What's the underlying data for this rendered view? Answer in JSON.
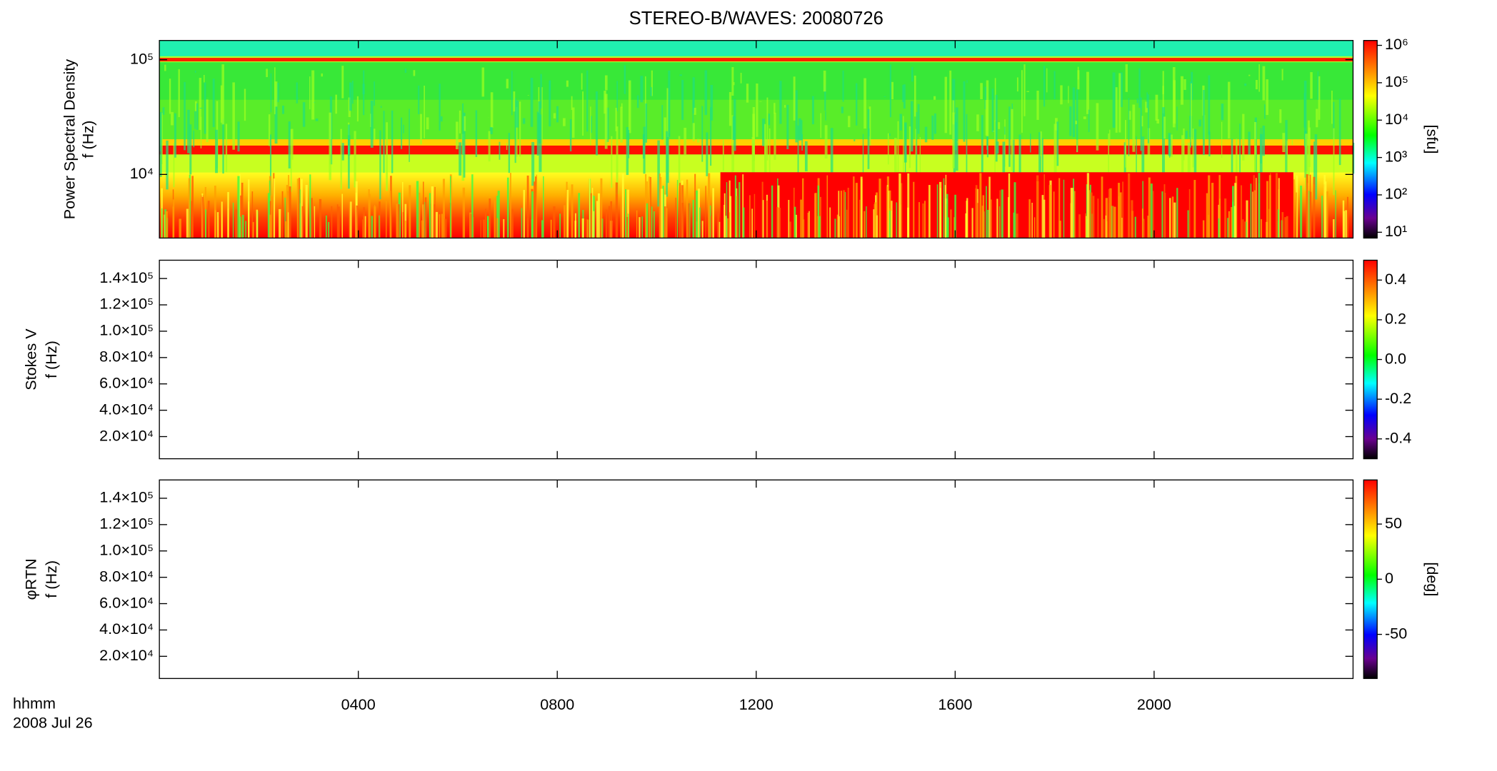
{
  "chart_data": {
    "type": "spectrogram",
    "title": "STEREO-B/WAVES: 20080726",
    "xlabel": "hhmm",
    "date": "2008 Jul 26",
    "xlim": [
      0,
      24
    ],
    "xticks": [
      {
        "value": 4,
        "label": "0400"
      },
      {
        "value": 8,
        "label": "0800"
      },
      {
        "value": 12,
        "label": "1200"
      },
      {
        "value": 16,
        "label": "1600"
      },
      {
        "value": 20,
        "label": "2000"
      }
    ],
    "panels": [
      {
        "ylabel": [
          "Power Spectral Density",
          "f (Hz)"
        ],
        "yscale": "log",
        "ylim": [
          2790,
          147000
        ],
        "yticks": [
          {
            "value": 10000,
            "label": "10⁴"
          },
          {
            "value": 100000,
            "label": "10⁵"
          }
        ],
        "colorbar": {
          "label": "[sfu]",
          "scale": "log",
          "lim": [
            7,
            1350000
          ],
          "ticks": [
            {
              "value": 10,
              "label": "10¹"
            },
            {
              "value": 100,
              "label": "10²"
            },
            {
              "value": 1000,
              "label": "10³"
            },
            {
              "value": 10000,
              "label": "10⁴"
            },
            {
              "value": 100000,
              "label": "10⁵"
            },
            {
              "value": 1000000,
              "label": "10⁶"
            }
          ]
        }
      },
      {
        "ylabel": [
          "Stokes V",
          "f (Hz)"
        ],
        "yscale": "linear",
        "ylim": [
          3170,
          153900
        ],
        "yticks": [
          {
            "value": 20000,
            "label": "2.0×10⁴"
          },
          {
            "value": 40000,
            "label": "4.0×10⁴"
          },
          {
            "value": 60000,
            "label": "6.0×10⁴"
          },
          {
            "value": 80000,
            "label": "8.0×10⁴"
          },
          {
            "value": 100000,
            "label": "1.0×10⁵"
          },
          {
            "value": 120000,
            "label": "1.2×10⁵"
          },
          {
            "value": 140000,
            "label": "1.4×10⁵"
          }
        ],
        "colorbar": {
          "scale": "linear",
          "lim": [
            -0.5,
            0.5
          ],
          "ticks": [
            -0.4,
            -0.2,
            {
              "value": 0,
              "label": "0.0"
            },
            0.2,
            0.4
          ]
        }
      },
      {
        "ylabel": [
          "φRTN",
          "f (Hz)"
        ],
        "yscale": "linear",
        "ylim": [
          3170,
          153900
        ],
        "yticks": [
          {
            "value": 20000,
            "label": "2.0×10⁴"
          },
          {
            "value": 40000,
            "label": "4.0×10⁴"
          },
          {
            "value": 60000,
            "label": "6.0×10⁴"
          },
          {
            "value": 80000,
            "label": "8.0×10⁴"
          },
          {
            "value": 100000,
            "label": "1.0×10⁵"
          },
          {
            "value": 120000,
            "label": "1.2×10⁵"
          },
          {
            "value": 140000,
            "label": "1.4×10⁵"
          }
        ],
        "colorbar": {
          "label": "[deg]",
          "scale": "linear",
          "lim": [
            -90,
            90
          ],
          "ticks": [
            -50,
            0,
            50
          ]
        }
      }
    ]
  }
}
